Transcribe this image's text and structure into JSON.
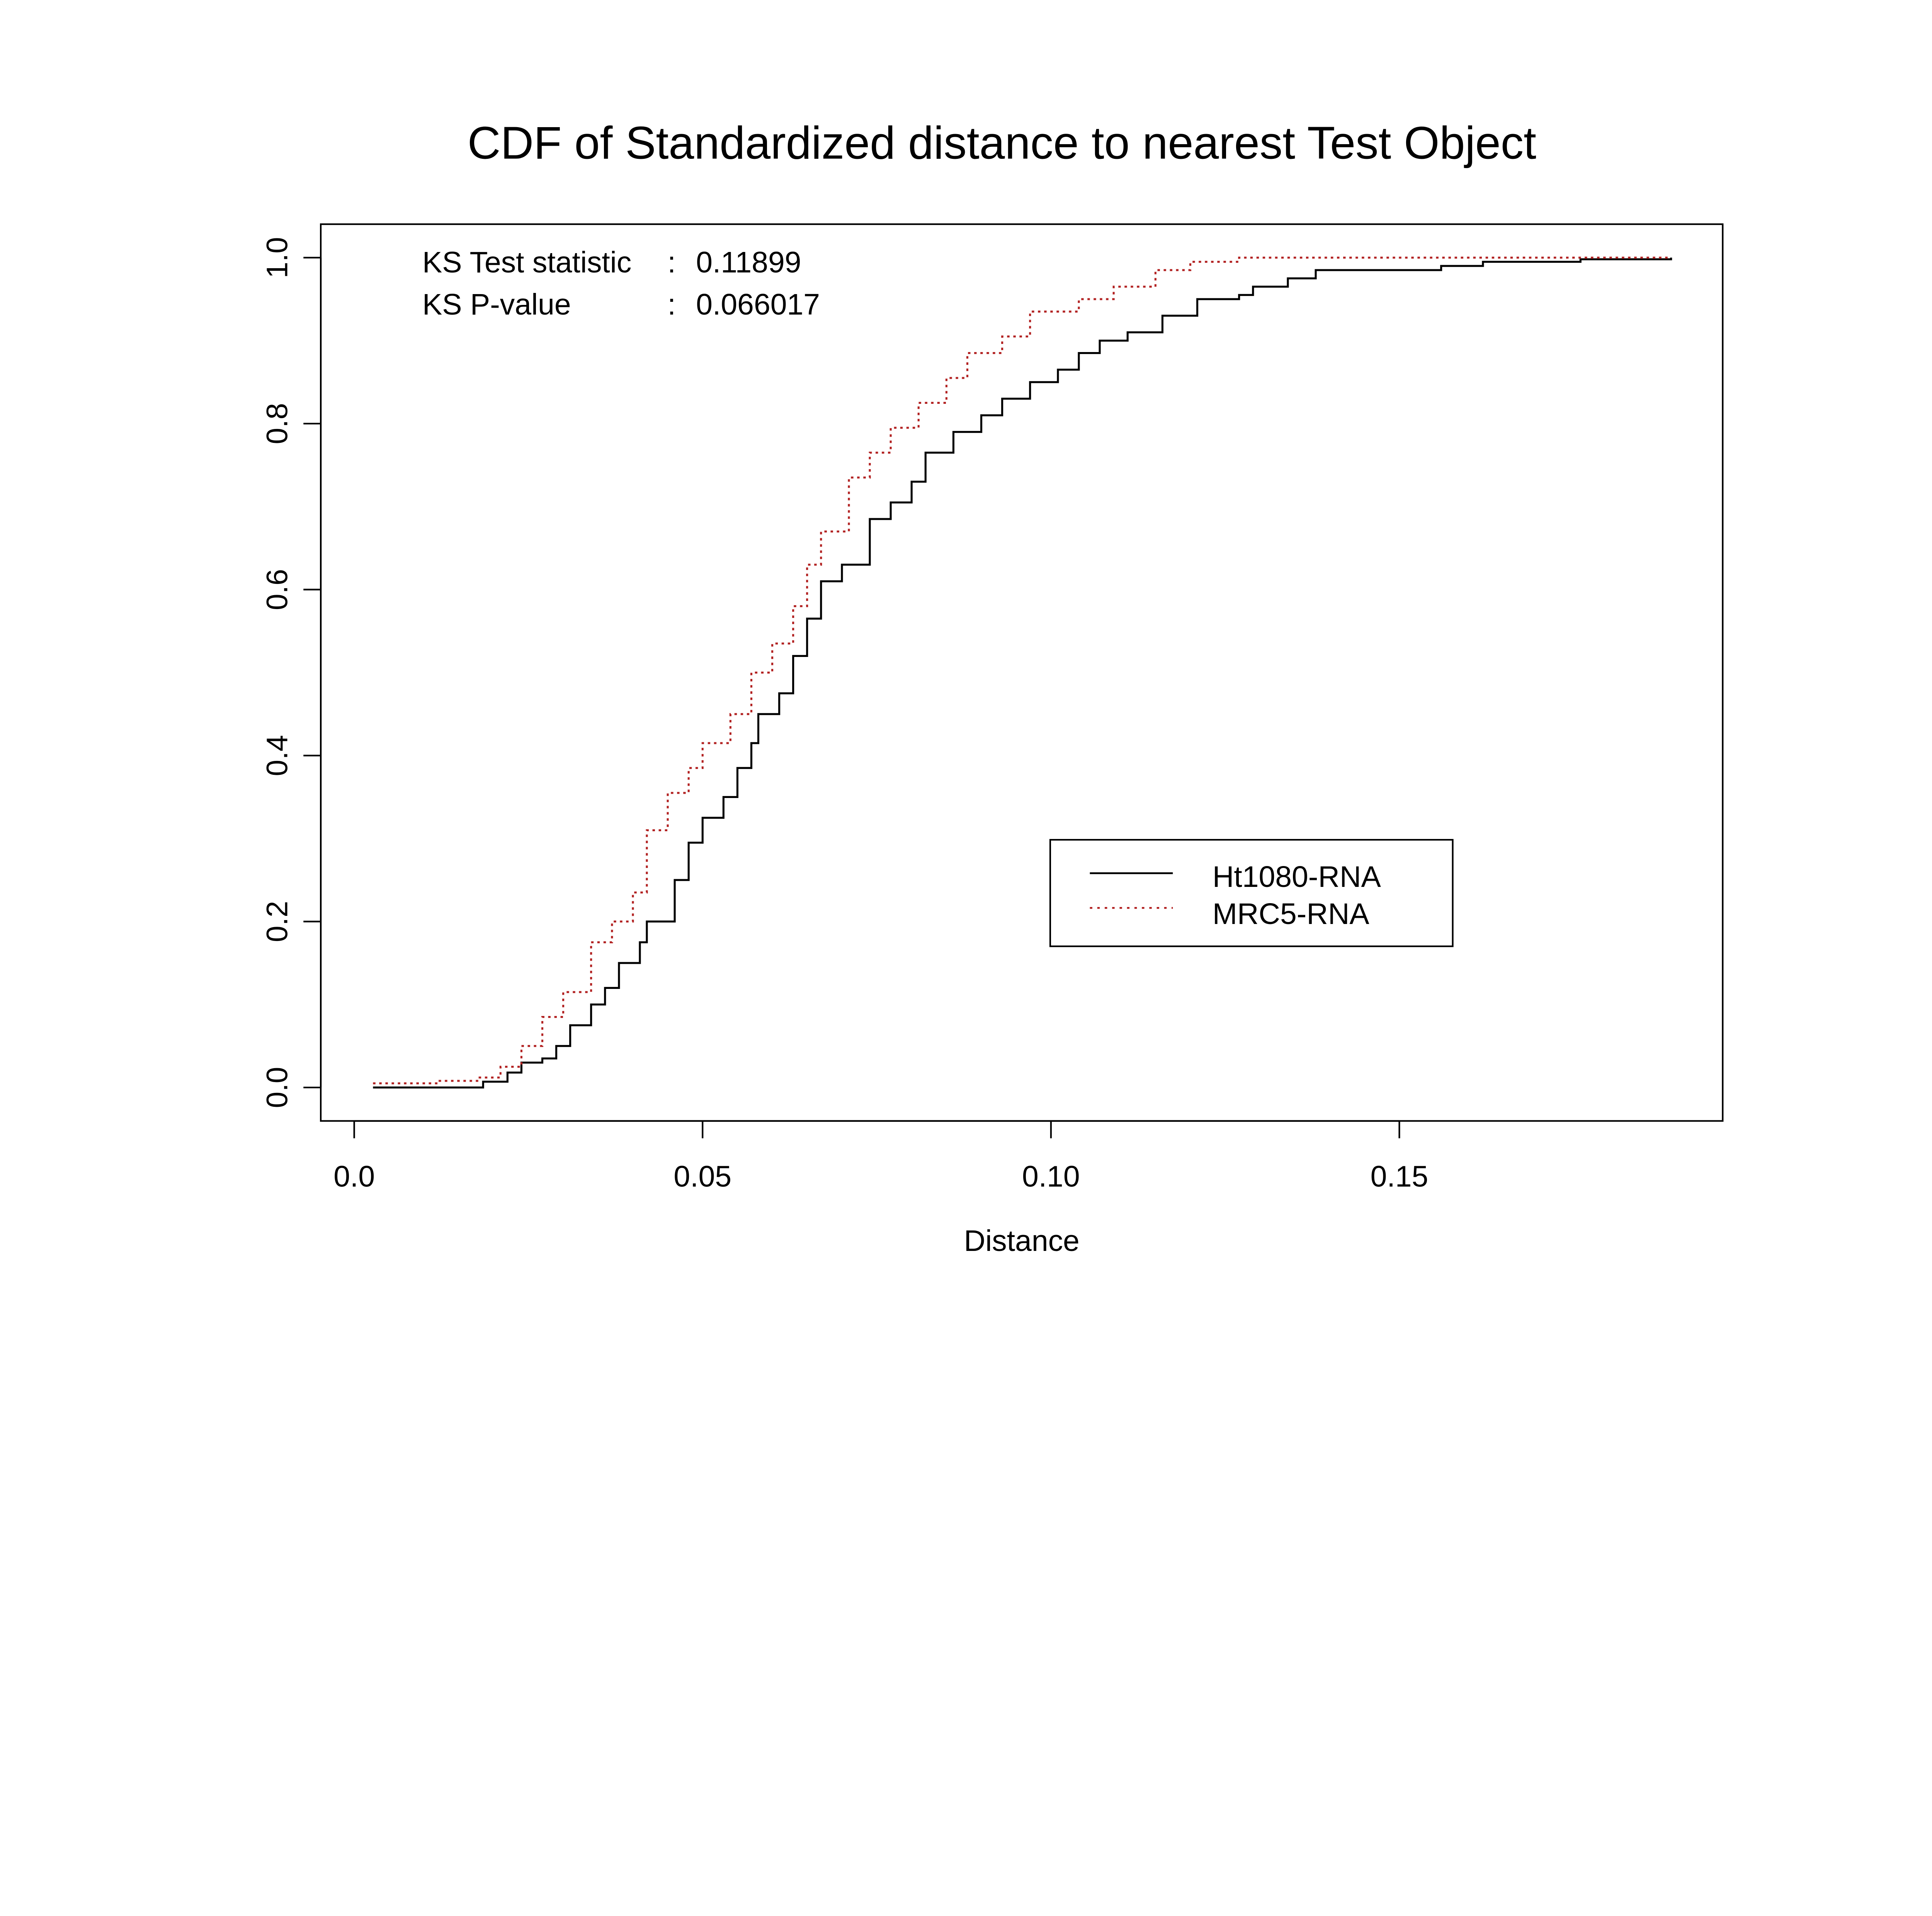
{
  "chart_data": {
    "type": "line",
    "title": "CDF of Standardized distance to nearest Test Object",
    "xlabel": "Distance",
    "ylabel": "",
    "xlim": [
      -0.005,
      0.197
    ],
    "ylim": [
      -0.04,
      1.04
    ],
    "x_ticks": [
      0.0,
      0.05,
      0.1,
      0.15
    ],
    "x_tick_labels": [
      "0.0",
      "0.05",
      "0.10",
      "0.15"
    ],
    "y_ticks": [
      0.0,
      0.2,
      0.4,
      0.6,
      0.8,
      1.0
    ],
    "y_tick_labels": [
      "0.0",
      "0.2",
      "0.4",
      "0.6",
      "0.8",
      "1.0"
    ],
    "grid": false,
    "legend_position": "bottom-right",
    "annotations": [
      {
        "label": "KS Test statistic",
        "sep": ":",
        "value": "0.11899"
      },
      {
        "label": "KS P-value",
        "sep": ":",
        "value": "0.066017"
      }
    ],
    "series": [
      {
        "name": "Ht1080-RNA",
        "color": "#000000",
        "style": "solid",
        "x": [
          0.0027,
          0.018,
          0.0185,
          0.022,
          0.024,
          0.027,
          0.029,
          0.031,
          0.034,
          0.036,
          0.038,
          0.041,
          0.042,
          0.044,
          0.046,
          0.048,
          0.05,
          0.053,
          0.055,
          0.057,
          0.058,
          0.061,
          0.063,
          0.065,
          0.067,
          0.07,
          0.074,
          0.077,
          0.08,
          0.082,
          0.086,
          0.09,
          0.093,
          0.097,
          0.101,
          0.104,
          0.107,
          0.111,
          0.116,
          0.121,
          0.127,
          0.129,
          0.134,
          0.138,
          0.156,
          0.162,
          0.176,
          0.189
        ],
        "y": [
          0.0,
          0.0,
          0.007,
          0.018,
          0.03,
          0.035,
          0.05,
          0.075,
          0.1,
          0.12,
          0.15,
          0.175,
          0.2,
          0.2,
          0.25,
          0.295,
          0.325,
          0.35,
          0.385,
          0.415,
          0.45,
          0.475,
          0.52,
          0.565,
          0.61,
          0.63,
          0.685,
          0.705,
          0.73,
          0.765,
          0.79,
          0.81,
          0.83,
          0.85,
          0.865,
          0.885,
          0.9,
          0.91,
          0.93,
          0.95,
          0.955,
          0.965,
          0.975,
          0.985,
          0.99,
          0.995,
          0.998,
          1.0
        ]
      },
      {
        "name": "MRC5-RNA",
        "color": "#b22222",
        "style": "dotted",
        "x": [
          0.0027,
          0.012,
          0.018,
          0.021,
          0.024,
          0.027,
          0.03,
          0.034,
          0.037,
          0.04,
          0.042,
          0.045,
          0.048,
          0.05,
          0.054,
          0.057,
          0.06,
          0.063,
          0.065,
          0.067,
          0.071,
          0.074,
          0.077,
          0.081,
          0.085,
          0.088,
          0.093,
          0.097,
          0.104,
          0.109,
          0.115,
          0.12,
          0.127,
          0.189
        ],
        "y": [
          0.005,
          0.008,
          0.012,
          0.025,
          0.05,
          0.085,
          0.115,
          0.175,
          0.2,
          0.235,
          0.31,
          0.355,
          0.385,
          0.415,
          0.45,
          0.5,
          0.535,
          0.58,
          0.63,
          0.67,
          0.735,
          0.765,
          0.795,
          0.825,
          0.855,
          0.885,
          0.905,
          0.935,
          0.95,
          0.965,
          0.985,
          0.995,
          1.0,
          1.0
        ]
      }
    ]
  }
}
